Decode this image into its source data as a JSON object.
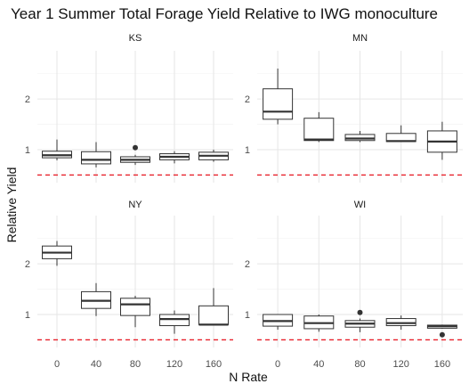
{
  "chart_data": {
    "type": "boxplot",
    "title": "Year 1 Summer Total Forage Yield Relative to IWG monoculture",
    "xlabel": "N Rate",
    "ylabel": "Relative Yield",
    "categories": [
      "0",
      "40",
      "80",
      "120",
      "160"
    ],
    "ylim": [
      0.35,
      2.95
    ],
    "yticks": [
      1,
      2
    ],
    "reference_line": {
      "y": 0.5,
      "color": "#e8202a",
      "style": "dashed"
    },
    "panels": [
      {
        "name": "KS",
        "boxes": [
          {
            "x": "0",
            "min": 0.79,
            "q1": 0.84,
            "median": 0.89,
            "q3": 0.97,
            "max": 1.2,
            "outliers": []
          },
          {
            "x": "40",
            "min": 0.65,
            "q1": 0.72,
            "median": 0.8,
            "q3": 0.96,
            "max": 1.15,
            "outliers": []
          },
          {
            "x": "80",
            "min": 0.7,
            "q1": 0.75,
            "median": 0.8,
            "q3": 0.86,
            "max": 0.9,
            "outliers": [
              1.04
            ]
          },
          {
            "x": "120",
            "min": 0.73,
            "q1": 0.8,
            "median": 0.86,
            "q3": 0.92,
            "max": 0.97,
            "outliers": []
          },
          {
            "x": "160",
            "min": 0.76,
            "q1": 0.8,
            "median": 0.88,
            "q3": 0.95,
            "max": 1.0,
            "outliers": []
          }
        ]
      },
      {
        "name": "MN",
        "boxes": [
          {
            "x": "0",
            "min": 1.5,
            "q1": 1.6,
            "median": 1.75,
            "q3": 2.2,
            "max": 2.6,
            "outliers": []
          },
          {
            "x": "40",
            "min": 1.15,
            "q1": 1.18,
            "median": 1.2,
            "q3": 1.62,
            "max": 1.74,
            "outliers": []
          },
          {
            "x": "80",
            "min": 1.15,
            "q1": 1.18,
            "median": 1.22,
            "q3": 1.3,
            "max": 1.37,
            "outliers": []
          },
          {
            "x": "120",
            "min": 1.15,
            "q1": 1.16,
            "median": 1.17,
            "q3": 1.32,
            "max": 1.48,
            "outliers": []
          },
          {
            "x": "160",
            "min": 0.8,
            "q1": 0.95,
            "median": 1.16,
            "q3": 1.37,
            "max": 1.55,
            "outliers": []
          }
        ]
      },
      {
        "name": "NY",
        "boxes": [
          {
            "x": "0",
            "min": 1.96,
            "q1": 2.1,
            "median": 2.22,
            "q3": 2.35,
            "max": 2.45,
            "outliers": []
          },
          {
            "x": "40",
            "min": 0.97,
            "q1": 1.12,
            "median": 1.27,
            "q3": 1.45,
            "max": 1.62,
            "outliers": []
          },
          {
            "x": "80",
            "min": 0.75,
            "q1": 0.98,
            "median": 1.2,
            "q3": 1.32,
            "max": 1.37,
            "outliers": []
          },
          {
            "x": "120",
            "min": 0.62,
            "q1": 0.78,
            "median": 0.91,
            "q3": 1.0,
            "max": 1.08,
            "outliers": []
          },
          {
            "x": "160",
            "min": 0.8,
            "q1": 0.8,
            "median": 0.8,
            "q3": 1.17,
            "max": 1.52,
            "outliers": []
          }
        ]
      },
      {
        "name": "WI",
        "boxes": [
          {
            "x": "0",
            "min": 0.7,
            "q1": 0.77,
            "median": 0.87,
            "q3": 1.0,
            "max": 1.0,
            "outliers": []
          },
          {
            "x": "40",
            "min": 0.66,
            "q1": 0.72,
            "median": 0.83,
            "q3": 0.97,
            "max": 1.0,
            "outliers": []
          },
          {
            "x": "80",
            "min": 0.65,
            "q1": 0.75,
            "median": 0.82,
            "q3": 0.88,
            "max": 0.92,
            "outliers": [
              1.04
            ]
          },
          {
            "x": "120",
            "min": 0.7,
            "q1": 0.78,
            "median": 0.83,
            "q3": 0.92,
            "max": 0.98,
            "outliers": []
          },
          {
            "x": "160",
            "min": 0.72,
            "q1": 0.73,
            "median": 0.77,
            "q3": 0.79,
            "max": 0.8,
            "outliers": [
              0.6
            ]
          }
        ]
      }
    ],
    "grid": true
  }
}
